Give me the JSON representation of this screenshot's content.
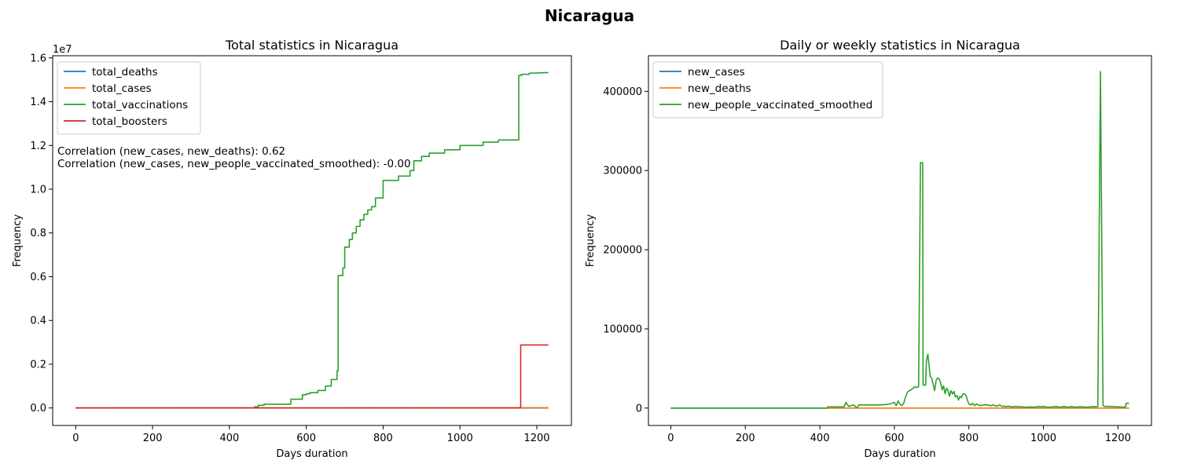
{
  "figure": {
    "title": "Nicaragua"
  },
  "chart_data": [
    {
      "type": "line",
      "title": "Total statistics in Nicaragua",
      "xlabel": "Days duration",
      "ylabel": "Frequency",
      "y_offset_label": "1e7",
      "xlim": [
        -60,
        1290
      ],
      "ylim": [
        -800000,
        16100000
      ],
      "xticks": [
        0,
        200,
        400,
        600,
        800,
        1000,
        1200
      ],
      "xtick_labels": [
        "0",
        "200",
        "400",
        "600",
        "800",
        "1000",
        "1200"
      ],
      "yticks": [
        0,
        2000000,
        4000000,
        6000000,
        8000000,
        10000000,
        12000000,
        14000000,
        16000000
      ],
      "ytick_labels": [
        "0.0",
        "0.2",
        "0.4",
        "0.6",
        "0.8",
        "1.0",
        "1.2",
        "1.4",
        "1.6"
      ],
      "legend_position": "upper-left",
      "grid": false,
      "annotations": [
        "Correlation (new_cases, new_deaths): 0.62",
        "Correlation (new_cases, new_people_vaccinated_smoothed): -0.00"
      ],
      "series": [
        {
          "name": "total_deaths",
          "color": "#1f77b4",
          "x": [
            0,
            1230
          ],
          "y": [
            0,
            0
          ]
        },
        {
          "name": "total_cases",
          "color": "#ff7f0e",
          "x": [
            0,
            1230
          ],
          "y": [
            0,
            15000
          ]
        },
        {
          "name": "total_vaccinations",
          "color": "#2ca02c",
          "x": [
            0,
            465,
            465,
            475,
            475,
            490,
            490,
            560,
            560,
            590,
            590,
            600,
            600,
            610,
            610,
            630,
            630,
            650,
            650,
            665,
            665,
            680,
            680,
            683,
            683,
            695,
            695,
            700,
            700,
            712,
            712,
            720,
            720,
            730,
            730,
            740,
            740,
            750,
            750,
            760,
            760,
            770,
            770,
            780,
            780,
            800,
            800,
            840,
            840,
            870,
            870,
            880,
            880,
            900,
            900,
            920,
            920,
            960,
            960,
            1000,
            1000,
            1060,
            1060,
            1100,
            1100,
            1153,
            1153,
            1160,
            1160,
            1180,
            1180,
            1230
          ],
          "y": [
            0,
            0,
            50000,
            50000,
            120000,
            120000,
            170000,
            170000,
            400000,
            400000,
            600000,
            600000,
            650000,
            650000,
            700000,
            700000,
            800000,
            800000,
            1000000,
            1000000,
            1300000,
            1300000,
            1700000,
            1700000,
            6050000,
            6050000,
            6400000,
            6400000,
            7350000,
            7350000,
            7700000,
            7700000,
            8000000,
            8000000,
            8300000,
            8300000,
            8600000,
            8600000,
            8850000,
            8850000,
            9050000,
            9050000,
            9200000,
            9200000,
            9600000,
            9600000,
            10400000,
            10400000,
            10600000,
            10600000,
            10850000,
            10850000,
            11300000,
            11300000,
            11500000,
            11500000,
            11650000,
            11650000,
            11800000,
            11800000,
            12000000,
            12000000,
            12150000,
            12150000,
            12250000,
            12250000,
            15200000,
            15200000,
            15250000,
            15250000,
            15300000,
            15330000
          ]
        },
        {
          "name": "total_boosters",
          "color": "#d62728",
          "x": [
            0,
            1158,
            1158,
            1230
          ],
          "y": [
            0,
            0,
            2880000,
            2880000
          ]
        }
      ]
    },
    {
      "type": "line",
      "title": "Daily or weekly statistics in Nicaragua",
      "xlabel": "Days duration",
      "ylabel": "Frequency",
      "xlim": [
        -60,
        1290
      ],
      "ylim": [
        -22000,
        445000
      ],
      "xticks": [
        0,
        200,
        400,
        600,
        800,
        1000,
        1200
      ],
      "xtick_labels": [
        "0",
        "200",
        "400",
        "600",
        "800",
        "1000",
        "1200"
      ],
      "yticks": [
        0,
        100000,
        200000,
        300000,
        400000
      ],
      "ytick_labels": [
        "0",
        "100000",
        "200000",
        "300000",
        "400000"
      ],
      "legend_position": "upper-left",
      "grid": false,
      "series": [
        {
          "name": "new_cases",
          "color": "#1f77b4",
          "x": [
            0,
            1230
          ],
          "y": [
            0,
            0
          ]
        },
        {
          "name": "new_deaths",
          "color": "#ff7f0e",
          "x": [
            0,
            1230
          ],
          "y": [
            0,
            0
          ]
        },
        {
          "name": "new_people_vaccinated_smoothed",
          "color": "#2ca02c",
          "x": [
            0,
            420,
            421,
            465,
            470,
            478,
            490,
            500,
            505,
            560,
            580,
            590,
            600,
            605,
            610,
            615,
            620,
            625,
            630,
            635,
            640,
            645,
            650,
            655,
            660,
            665,
            670,
            676,
            677,
            684,
            686,
            690,
            696,
            700,
            704,
            708,
            712,
            716,
            720,
            724,
            728,
            732,
            736,
            740,
            744,
            748,
            752,
            756,
            760,
            764,
            768,
            772,
            776,
            780,
            784,
            788,
            792,
            796,
            800,
            805,
            810,
            815,
            820,
            825,
            830,
            840,
            850,
            858,
            866,
            872,
            878,
            882,
            886,
            890,
            896,
            900,
            905,
            915,
            925,
            935,
            945,
            955,
            965,
            975,
            985,
            995,
            1000,
            1005,
            1015,
            1025,
            1035,
            1045,
            1055,
            1065,
            1075,
            1085,
            1095,
            1105,
            1115,
            1125,
            1135,
            1140,
            1146,
            1153,
            1160,
            1165,
            1180,
            1200,
            1220,
            1222,
            1230
          ],
          "y": [
            0,
            0,
            1500,
            1500,
            7000,
            2000,
            4000,
            200,
            4000,
            4000,
            4500,
            5500,
            7000,
            3000,
            9000,
            5000,
            3000,
            6000,
            14000,
            20000,
            22000,
            23000,
            25000,
            27000,
            26000,
            27000,
            310000,
            310000,
            29000,
            29000,
            60000,
            68000,
            40000,
            38000,
            30000,
            22000,
            35000,
            38000,
            37000,
            32000,
            23000,
            28000,
            18000,
            25000,
            22000,
            15000,
            22000,
            18000,
            21000,
            14000,
            16000,
            10000,
            15000,
            13000,
            18000,
            18000,
            16000,
            10000,
            5000,
            4000,
            6000,
            3000,
            5000,
            4000,
            3000,
            4000,
            4000,
            3000,
            4000,
            2500,
            3000,
            4000,
            3000,
            2000,
            2500,
            1500,
            2500,
            1500,
            2000,
            1500,
            1500,
            1000,
            1500,
            1000,
            2000,
            1500,
            2000,
            1500,
            1000,
            1500,
            2000,
            1000,
            2000,
            1000,
            2000,
            1000,
            1500,
            1500,
            1000,
            1500,
            2000,
            1500,
            2000,
            425000,
            3000,
            2000,
            2000,
            1500,
            1000,
            6000,
            6000
          ]
        }
      ]
    }
  ]
}
